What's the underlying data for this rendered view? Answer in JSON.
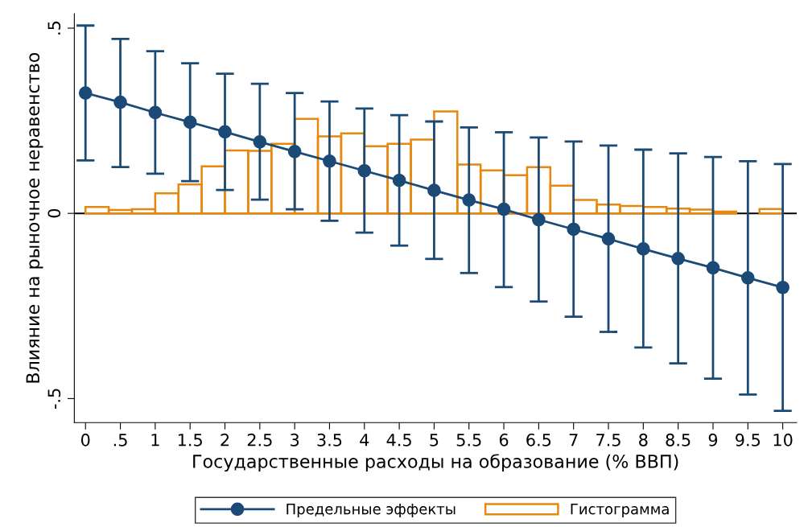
{
  "chart_data": {
    "type": "line",
    "xlabel": "Государственные расходы на образование (% ВВП)",
    "ylabel": "Влияние на рыночное неравенство",
    "xlim": [
      -0.16,
      10.2
    ],
    "ylim": [
      -0.565,
      0.539
    ],
    "xticks": [
      0,
      {
        "value": 0.5,
        "label": ".5"
      },
      1,
      {
        "value": 1.5,
        "label": "1.5"
      },
      2,
      {
        "value": 2.5,
        "label": "2.5"
      },
      3,
      {
        "value": 3.5,
        "label": "3.5"
      },
      4,
      {
        "value": 4.5,
        "label": "4.5"
      },
      5,
      {
        "value": 5.5,
        "label": "5.5"
      },
      6,
      {
        "value": 6.5,
        "label": "6.5"
      },
      7,
      {
        "value": 7.5,
        "label": "7.5"
      },
      8,
      {
        "value": 8.5,
        "label": "8.5"
      },
      9,
      {
        "value": 9.5,
        "label": "9.5"
      },
      10
    ],
    "yticks": [
      {
        "value": -0.5,
        "label": "-.5"
      },
      0,
      {
        "value": 0.5,
        "label": ".5"
      }
    ],
    "grid": false,
    "legend": "bottom",
    "marker": "circle",
    "line_style": "solid",
    "ref_lines": [
      {
        "axis": "y",
        "value": 0,
        "color": "#000000"
      }
    ],
    "series": [
      {
        "name": "Предельные эффекты",
        "color": "#1a4a75",
        "x": [
          0,
          0.5,
          1,
          1.5,
          2,
          2.5,
          3,
          3.5,
          4,
          4.5,
          5,
          5.5,
          6,
          6.5,
          7,
          7.5,
          8,
          8.5,
          9,
          9.5,
          10
        ],
        "values": [
          0.325,
          0.3,
          0.272,
          0.246,
          0.22,
          0.193,
          0.167,
          0.141,
          0.115,
          0.089,
          0.062,
          0.036,
          0.011,
          -0.017,
          -0.043,
          -0.069,
          -0.096,
          -0.122,
          -0.147,
          -0.174,
          -0.2
        ],
        "errors": [
          [
            0.143,
            0.507
          ],
          [
            0.125,
            0.471
          ],
          [
            0.107,
            0.438
          ],
          [
            0.087,
            0.405
          ],
          [
            0.063,
            0.377
          ],
          [
            0.037,
            0.35
          ],
          [
            0.011,
            0.325
          ],
          [
            -0.02,
            0.302
          ],
          [
            -0.052,
            0.283
          ],
          [
            -0.087,
            0.265
          ],
          [
            -0.123,
            0.248
          ],
          [
            -0.161,
            0.232
          ],
          [
            -0.199,
            0.219
          ],
          [
            -0.238,
            0.205
          ],
          [
            -0.279,
            0.194
          ],
          [
            -0.32,
            0.183
          ],
          [
            -0.362,
            0.172
          ],
          [
            -0.405,
            0.162
          ],
          [
            -0.446,
            0.152
          ],
          [
            -0.489,
            0.141
          ],
          [
            -0.533,
            0.133
          ]
        ]
      },
      {
        "name": "Гистограмма",
        "type": "histogram",
        "color": "#e8870e",
        "bins": [
          0,
          0.3333,
          0.6667,
          1,
          1.3333,
          1.6667,
          2,
          2.3333,
          2.6667,
          3,
          3.3333,
          3.6667,
          4,
          4.3333,
          4.6667,
          5,
          5.3333,
          5.6667,
          6,
          6.3333,
          6.6667,
          7,
          7.3333,
          7.6667,
          8,
          8.3333,
          8.6667,
          9,
          9.3333,
          9.6667,
          10
        ],
        "values": [
          0.017,
          0.009,
          0.011,
          0.054,
          0.078,
          0.127,
          0.17,
          0.169,
          0.188,
          0.255,
          0.208,
          0.216,
          0.181,
          0.188,
          0.199,
          0.275,
          0.132,
          0.116,
          0.103,
          0.125,
          0.075,
          0.036,
          0.024,
          0.02,
          0.017,
          0.013,
          0.01,
          0.005,
          0,
          0.012
        ]
      }
    ]
  }
}
